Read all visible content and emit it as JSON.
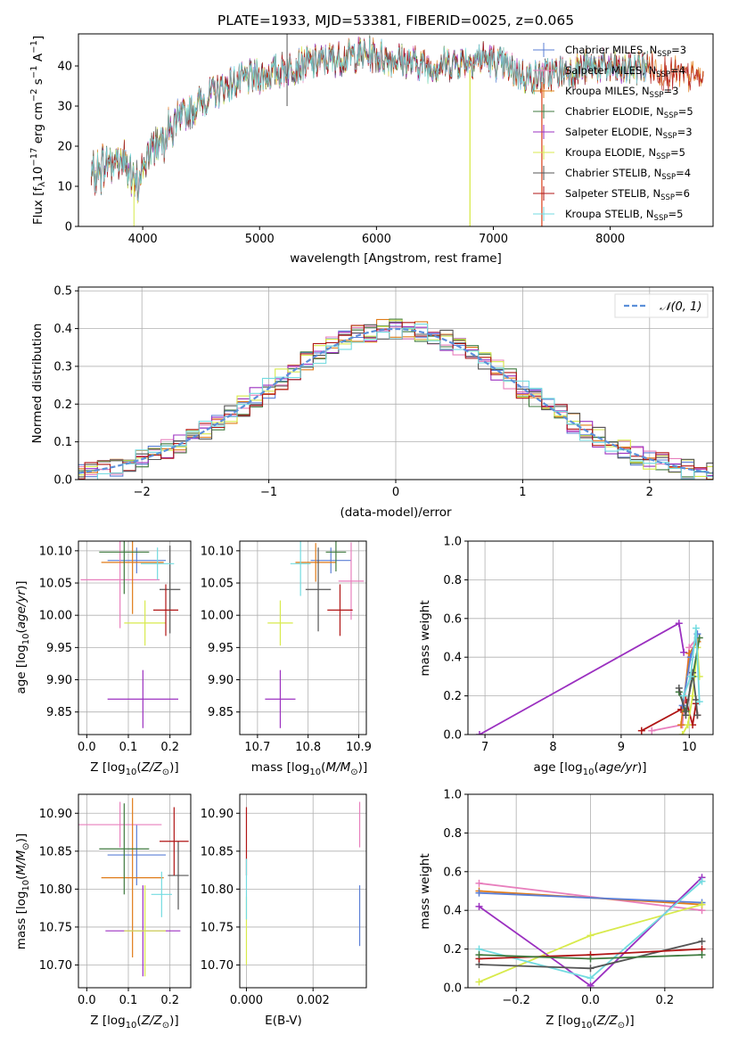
{
  "colors": {
    "Chabrier MILES": "#5b7fd6",
    "Salpeter MILES": "#e87fbd",
    "Kroupa MILES": "#e07b18",
    "Chabrier ELODIE": "#3f7a3f",
    "Salpeter ELODIE": "#9b30c0",
    "Kroupa ELODIE": "#d8ea4c",
    "Chabrier STELIB": "#555555",
    "Salpeter STELIB": "#b01515",
    "Kroupa STELIB": "#73dbe0",
    "normal": "#5b8fd9"
  },
  "chart_data": [
    {
      "type": "line",
      "title": "PLATE=1933, MJD=53381, FIBERID=0025, z=0.065",
      "xlabel": "wavelength [Angstrom, rest frame]",
      "ylabel": "Flux [f_λ 10^-17 erg cm^-2 s^-1 A^-1]",
      "xlim": [
        3450,
        8880
      ],
      "ylim": [
        0,
        48
      ],
      "xticks": [
        "4000",
        "5000",
        "6000",
        "7000",
        "8000"
      ],
      "yticks": [
        "0",
        "10",
        "20",
        "30",
        "40"
      ],
      "legend_position": "upper right",
      "legend": [
        {
          "name": "Chabrier MILES, N_SSP=3",
          "pre": "Chabrier MILES, N",
          "sub": "SSP",
          "post": "=3"
        },
        {
          "name": "Salpeter MILES, N_SSP=4",
          "pre": "Salpeter MILES, N",
          "sub": "SSP",
          "post": "=4"
        },
        {
          "name": "Kroupa MILES, N_SSP=3",
          "pre": "Kroupa MILES, N",
          "sub": "SSP",
          "post": "=3"
        },
        {
          "name": "Chabrier ELODIE, N_SSP=5",
          "pre": "Chabrier ELODIE, N",
          "sub": "SSP",
          "post": "=5"
        },
        {
          "name": "Salpeter ELODIE, N_SSP=3",
          "pre": "Salpeter ELODIE, N",
          "sub": "SSP",
          "post": "=3"
        },
        {
          "name": "Kroupa ELODIE, N_SSP=5",
          "pre": "Kroupa ELODIE, N",
          "sub": "SSP",
          "post": "=5"
        },
        {
          "name": "Chabrier STELIB, N_SSP=4",
          "pre": "Chabrier STELIB, N",
          "sub": "SSP",
          "post": "=4"
        },
        {
          "name": "Salpeter STELIB, N_SSP=6",
          "pre": "Salpeter STELIB, N",
          "sub": "SSP",
          "post": "=6"
        },
        {
          "name": "Kroupa STELIB, N_SSP=5",
          "pre": "Kroupa STELIB, N",
          "sub": "SSP",
          "post": "=5"
        }
      ],
      "continuum_x": [
        3560,
        3700,
        3850,
        3930,
        4000,
        4100,
        4300,
        4500,
        4700,
        4900,
        5100,
        5300,
        5500,
        5700,
        5900,
        6100,
        6300,
        6500,
        6700,
        6900,
        7100,
        7300,
        7500,
        7700,
        7900,
        8100,
        8300,
        8500,
        8800
      ],
      "continuum_y": [
        12,
        16,
        17,
        9,
        14,
        21,
        26,
        31,
        35,
        37,
        38,
        40,
        41,
        42,
        43,
        42,
        41,
        40,
        41,
        42,
        40,
        37,
        38,
        39,
        40,
        39,
        40,
        38,
        37
      ]
    },
    {
      "type": "histogram",
      "xlabel": "(data-model)/error",
      "ylabel": "Normed distribution",
      "xlim": [
        -2.5,
        2.5
      ],
      "ylim": [
        0,
        0.51
      ],
      "xticks": [
        "−2",
        "−1",
        "0",
        "1",
        "2"
      ],
      "yticks": [
        "0.0",
        "0.1",
        "0.2",
        "0.3",
        "0.4",
        "0.5"
      ],
      "reference_label": "N(0,1)",
      "grid": true
    },
    {
      "type": "scatter",
      "xlabel": "Z [log10(Z/Z⊙)]",
      "ylabel": "age  [log10(age/yr)]",
      "xlim": [
        -0.02,
        0.25
      ],
      "ylim": [
        9.815,
        10.115
      ],
      "xticks": [
        "0.0",
        "0.1",
        "0.2"
      ],
      "yticks": [
        "9.85",
        "9.90",
        "9.95",
        "10.00",
        "10.05",
        "10.10"
      ],
      "points": [
        {
          "series": "Chabrier MILES",
          "x": 0.12,
          "y": 10.085,
          "xerr": 0.07,
          "yerr": 0.02
        },
        {
          "series": "Salpeter MILES",
          "x": 0.08,
          "y": 10.055,
          "xerr": 0.095,
          "yerr": 0.075
        },
        {
          "series": "Kroupa MILES",
          "x": 0.11,
          "y": 10.082,
          "xerr": 0.075,
          "yerr": 0.08
        },
        {
          "series": "Chabrier ELODIE",
          "x": 0.09,
          "y": 10.098,
          "xerr": 0.06,
          "yerr": 0.065
        },
        {
          "series": "Salpeter ELODIE",
          "x": 0.135,
          "y": 9.87,
          "xerr": 0.085,
          "yerr": 0.045
        },
        {
          "series": "Kroupa ELODIE",
          "x": 0.14,
          "y": 9.988,
          "xerr": 0.05,
          "yerr": 0.035
        },
        {
          "series": "Chabrier STELIB",
          "x": 0.2,
          "y": 10.04,
          "xerr": 0.025,
          "yerr": 0.068
        },
        {
          "series": "Salpeter STELIB",
          "x": 0.19,
          "y": 10.008,
          "xerr": 0.03,
          "yerr": 0.04
        },
        {
          "series": "Kroupa STELIB",
          "x": 0.17,
          "y": 10.08,
          "xerr": 0.04,
          "yerr": 0.025
        }
      ]
    },
    {
      "type": "scatter",
      "xlabel": "mass [log10(M/M⊙)]",
      "ylabel": "",
      "xlim": [
        10.665,
        10.915
      ],
      "ylim": [
        9.815,
        10.115
      ],
      "xticks": [
        "10.7",
        "10.8",
        "10.9"
      ],
      "yticks": [
        "9.85",
        "9.90",
        "9.95",
        "10.00",
        "10.05",
        "10.10"
      ],
      "points": [
        {
          "series": "Chabrier MILES",
          "x": 10.845,
          "y": 10.085,
          "xerr": 0.04,
          "yerr": 0.02
        },
        {
          "series": "Salpeter MILES",
          "x": 10.885,
          "y": 10.053,
          "xerr": 0.025,
          "yerr": 0.06
        },
        {
          "series": "Kroupa MILES",
          "x": 10.815,
          "y": 10.082,
          "xerr": 0.04,
          "yerr": 0.03
        },
        {
          "series": "Chabrier ELODIE",
          "x": 10.855,
          "y": 10.098,
          "xerr": 0.02,
          "yerr": 0.03
        },
        {
          "series": "Salpeter ELODIE",
          "x": 10.745,
          "y": 9.87,
          "xerr": 0.03,
          "yerr": 0.045
        },
        {
          "series": "Kroupa ELODIE",
          "x": 10.745,
          "y": 9.988,
          "xerr": 0.025,
          "yerr": 0.035
        },
        {
          "series": "Chabrier STELIB",
          "x": 10.82,
          "y": 10.04,
          "xerr": 0.025,
          "yerr": 0.065
        },
        {
          "series": "Salpeter STELIB",
          "x": 10.863,
          "y": 10.008,
          "xerr": 0.025,
          "yerr": 0.04
        },
        {
          "series": "Kroupa STELIB",
          "x": 10.785,
          "y": 10.08,
          "xerr": 0.02,
          "yerr": 0.05
        }
      ]
    },
    {
      "type": "line",
      "xlabel": "age  [log10(age/yr)]",
      "ylabel": "mass weight",
      "xlim": [
        6.75,
        10.35
      ],
      "ylim": [
        0,
        1
      ],
      "xticks": [
        "7",
        "8",
        "9",
        "10"
      ],
      "yticks": [
        "0.0",
        "0.2",
        "0.4",
        "0.6",
        "0.8",
        "1.0"
      ],
      "grid": true,
      "series": [
        {
          "name": "Salpeter ELODIE",
          "x": [
            6.92,
            9.85,
            9.92
          ],
          "y": [
            0.0,
            0.575,
            0.425
          ]
        },
        {
          "name": "Salpeter STELIB",
          "x": [
            9.3,
            9.88,
            9.95,
            10.05,
            10.1,
            10.12
          ],
          "y": [
            0.02,
            0.13,
            0.18,
            0.05,
            0.16,
            0.1
          ]
        },
        {
          "name": "Salpeter MILES",
          "x": [
            9.45,
            9.9,
            10.0,
            10.12
          ],
          "y": [
            0.02,
            0.05,
            0.45,
            0.5
          ]
        },
        {
          "name": "Kroupa ELODIE",
          "x": [
            9.9,
            9.98,
            10.05,
            10.12,
            10.15
          ],
          "y": [
            0.0,
            0.05,
            0.2,
            0.45,
            0.3
          ]
        },
        {
          "name": "Kroupa MILES",
          "x": [
            9.88,
            10.0,
            10.12
          ],
          "y": [
            0.05,
            0.42,
            0.48
          ]
        },
        {
          "name": "Chabrier ELODIE",
          "x": [
            9.85,
            9.95,
            10.05,
            10.15
          ],
          "y": [
            0.22,
            0.12,
            0.3,
            0.5
          ]
        },
        {
          "name": "Chabrier MILES",
          "x": [
            9.9,
            10.02,
            10.12
          ],
          "y": [
            0.15,
            0.4,
            0.52
          ]
        },
        {
          "name": "Chabrier STELIB",
          "x": [
            9.85,
            9.95,
            10.05,
            10.1,
            10.12
          ],
          "y": [
            0.24,
            0.1,
            0.32,
            0.18,
            0.1
          ]
        },
        {
          "name": "Kroupa STELIB",
          "x": [
            9.92,
            10.02,
            10.1,
            10.15
          ],
          "y": [
            0.2,
            0.3,
            0.55,
            0.17
          ]
        }
      ]
    },
    {
      "type": "scatter",
      "xlabel": "Z [log10(Z/Z⊙)]",
      "ylabel": "mass [log10(M/M⊙)]",
      "xlim": [
        -0.02,
        0.25
      ],
      "ylim": [
        10.67,
        10.925
      ],
      "xticks": [
        "0.0",
        "0.1",
        "0.2"
      ],
      "yticks": [
        "10.70",
        "10.75",
        "10.80",
        "10.85",
        "10.90"
      ],
      "points": [
        {
          "series": "Chabrier MILES",
          "x": 0.12,
          "y": 10.845,
          "xerr": 0.07,
          "yerr": 0.04
        },
        {
          "series": "Salpeter MILES",
          "x": 0.08,
          "y": 10.885,
          "xerr": 0.1,
          "yerr": 0.03
        },
        {
          "series": "Kroupa MILES",
          "x": 0.11,
          "y": 10.815,
          "xerr": 0.075,
          "yerr": 0.105
        },
        {
          "series": "Chabrier ELODIE",
          "x": 0.09,
          "y": 10.853,
          "xerr": 0.06,
          "yerr": 0.06
        },
        {
          "series": "Salpeter ELODIE",
          "x": 0.135,
          "y": 10.745,
          "xerr": 0.09,
          "yerr": 0.06
        },
        {
          "series": "Kroupa ELODIE",
          "x": 0.14,
          "y": 10.745,
          "xerr": 0.05,
          "yerr": 0.06
        },
        {
          "series": "Chabrier STELIB",
          "x": 0.22,
          "y": 10.818,
          "xerr": 0.025,
          "yerr": 0.045
        },
        {
          "series": "Salpeter STELIB",
          "x": 0.21,
          "y": 10.863,
          "xerr": 0.035,
          "yerr": 0.045
        },
        {
          "series": "Kroupa STELIB",
          "x": 0.18,
          "y": 10.793,
          "xerr": 0.025,
          "yerr": 0.03
        }
      ]
    },
    {
      "type": "scatter",
      "xlabel": "E(B-V)",
      "ylabel": "",
      "xlim": [
        -0.0002,
        0.0036
      ],
      "ylim": [
        10.67,
        10.925
      ],
      "xticks": [
        "0.000",
        "0.002"
      ],
      "yticks": [
        "10.70",
        "10.75",
        "10.80",
        "10.85",
        "10.90"
      ],
      "points": [
        {
          "series": "Salpeter STELIB",
          "x": 0.0,
          "y": 10.863,
          "xerr": 0.0,
          "yerr": 0.045
        },
        {
          "series": "Kroupa ELODIE",
          "x": 0.0,
          "y": 10.745,
          "xerr": 0.0,
          "yerr": 0.045
        },
        {
          "series": "Kroupa STELIB",
          "x": 0.0,
          "y": 10.8,
          "xerr": 0.0,
          "yerr": 0.04
        },
        {
          "series": "Salpeter MILES",
          "x": 0.0034,
          "y": 10.885,
          "xerr": 0.0,
          "yerr": 0.03
        },
        {
          "series": "Chabrier MILES",
          "x": 0.0034,
          "y": 10.765,
          "xerr": 0.0,
          "yerr": 0.04
        }
      ]
    },
    {
      "type": "line",
      "xlabel": "Z [log10(Z/Z⊙)]",
      "ylabel": "mass weight",
      "xlim": [
        -0.33,
        0.33
      ],
      "ylim": [
        0,
        1
      ],
      "xticks": [
        "−0.2",
        "0.0",
        "0.2"
      ],
      "yticks": [
        "0.0",
        "0.2",
        "0.4",
        "0.6",
        "0.8",
        "1.0"
      ],
      "grid": true,
      "series": [
        {
          "name": "Salpeter MILES",
          "x": [
            -0.3,
            0.3
          ],
          "y": [
            0.54,
            0.4
          ]
        },
        {
          "name": "Kroupa MILES",
          "x": [
            -0.3,
            0.3
          ],
          "y": [
            0.5,
            0.43
          ]
        },
        {
          "name": "Chabrier MILES",
          "x": [
            -0.3,
            0.3
          ],
          "y": [
            0.49,
            0.44
          ]
        },
        {
          "name": "Kroupa ELODIE",
          "x": [
            -0.3,
            0.0,
            0.3
          ],
          "y": [
            0.03,
            0.27,
            0.43
          ]
        },
        {
          "name": "Salpeter ELODIE",
          "x": [
            -0.3,
            0.0,
            0.3
          ],
          "y": [
            0.42,
            0.01,
            0.57
          ]
        },
        {
          "name": "Kroupa STELIB",
          "x": [
            -0.3,
            0.0,
            0.3
          ],
          "y": [
            0.2,
            0.05,
            0.55
          ]
        },
        {
          "name": "Chabrier STELIB",
          "x": [
            -0.3,
            0.0,
            0.3
          ],
          "y": [
            0.12,
            0.1,
            0.24
          ]
        },
        {
          "name": "Salpeter STELIB",
          "x": [
            -0.3,
            0.0,
            0.3
          ],
          "y": [
            0.15,
            0.17,
            0.2
          ]
        },
        {
          "name": "Chabrier ELODIE",
          "x": [
            -0.3,
            0.0,
            0.3
          ],
          "y": [
            0.17,
            0.15,
            0.17
          ]
        }
      ]
    }
  ]
}
